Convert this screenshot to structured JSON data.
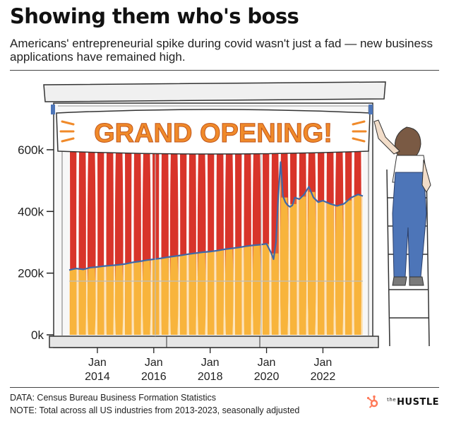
{
  "header": {
    "title": "Showing them who's boss",
    "subtitle": "Americans' entrepreneurial spike during covid wasn't just a fad — new business applications have remained high."
  },
  "illustration": {
    "banner_text": "GRAND OPENING!",
    "colors": {
      "red": "#d8342a",
      "yellow": "#f8b43c",
      "line": "#3f68a8",
      "overalls": "#4d75b8"
    }
  },
  "footer": {
    "source": "DATA: Census Bureau Business Formation Statistics",
    "note": "NOTE: Total across all US industries from 2013-2023, seasonally adjusted",
    "brand_prefix": "the",
    "brand_name": "HUSTLE"
  },
  "chart_data": {
    "type": "area",
    "title": "Showing them who's boss",
    "xlabel": "",
    "ylabel": "",
    "ylim": [
      0,
      600000
    ],
    "xlim": [
      "2013-01",
      "2023-06"
    ],
    "y_ticks": [
      {
        "value": 0,
        "label": "0k"
      },
      {
        "value": 200000,
        "label": "200k"
      },
      {
        "value": 400000,
        "label": "400k"
      },
      {
        "value": 600000,
        "label": "600k"
      }
    ],
    "x_ticks": [
      {
        "value": "2014-01",
        "label": [
          "Jan",
          "2014"
        ]
      },
      {
        "value": "2016-01",
        "label": [
          "Jan",
          "2016"
        ]
      },
      {
        "value": "2018-01",
        "label": [
          "Jan",
          "2018"
        ]
      },
      {
        "value": "2020-01",
        "label": [
          "Jan",
          "2020"
        ]
      },
      {
        "value": "2022-01",
        "label": [
          "Jan",
          "2022"
        ]
      }
    ],
    "grid": false,
    "legend": "none",
    "series": [
      {
        "points": [
          [
            "2013-01",
            210000
          ],
          [
            "2013-04",
            215000
          ],
          [
            "2013-07",
            212000
          ],
          [
            "2013-10",
            218000
          ],
          [
            "2014-01",
            220000
          ],
          [
            "2014-04",
            223000
          ],
          [
            "2014-07",
            225000
          ],
          [
            "2014-10",
            227000
          ],
          [
            "2015-01",
            230000
          ],
          [
            "2015-04",
            235000
          ],
          [
            "2015-07",
            238000
          ],
          [
            "2015-10",
            242000
          ],
          [
            "2016-01",
            245000
          ],
          [
            "2016-04",
            248000
          ],
          [
            "2016-07",
            252000
          ],
          [
            "2016-10",
            255000
          ],
          [
            "2017-01",
            258000
          ],
          [
            "2017-04",
            262000
          ],
          [
            "2017-07",
            265000
          ],
          [
            "2017-10",
            268000
          ],
          [
            "2018-01",
            270000
          ],
          [
            "2018-04",
            273000
          ],
          [
            "2018-07",
            277000
          ],
          [
            "2018-10",
            280000
          ],
          [
            "2019-01",
            283000
          ],
          [
            "2019-04",
            287000
          ],
          [
            "2019-07",
            290000
          ],
          [
            "2019-10",
            292000
          ],
          [
            "2020-01",
            295000
          ],
          [
            "2020-03",
            265000
          ],
          [
            "2020-04",
            245000
          ],
          [
            "2020-05",
            300000
          ],
          [
            "2020-06",
            450000
          ],
          [
            "2020-07",
            560000
          ],
          [
            "2020-08",
            450000
          ],
          [
            "2020-09",
            430000
          ],
          [
            "2020-10",
            420000
          ],
          [
            "2020-11",
            415000
          ],
          [
            "2020-12",
            420000
          ],
          [
            "2021-01",
            445000
          ],
          [
            "2021-03",
            440000
          ],
          [
            "2021-05",
            455000
          ],
          [
            "2021-07",
            480000
          ],
          [
            "2021-09",
            445000
          ],
          [
            "2021-11",
            430000
          ],
          [
            "2022-01",
            435000
          ],
          [
            "2022-04",
            425000
          ],
          [
            "2022-07",
            418000
          ],
          [
            "2022-10",
            425000
          ],
          [
            "2023-01",
            445000
          ],
          [
            "2023-04",
            455000
          ],
          [
            "2023-06",
            450000
          ]
        ]
      }
    ]
  }
}
